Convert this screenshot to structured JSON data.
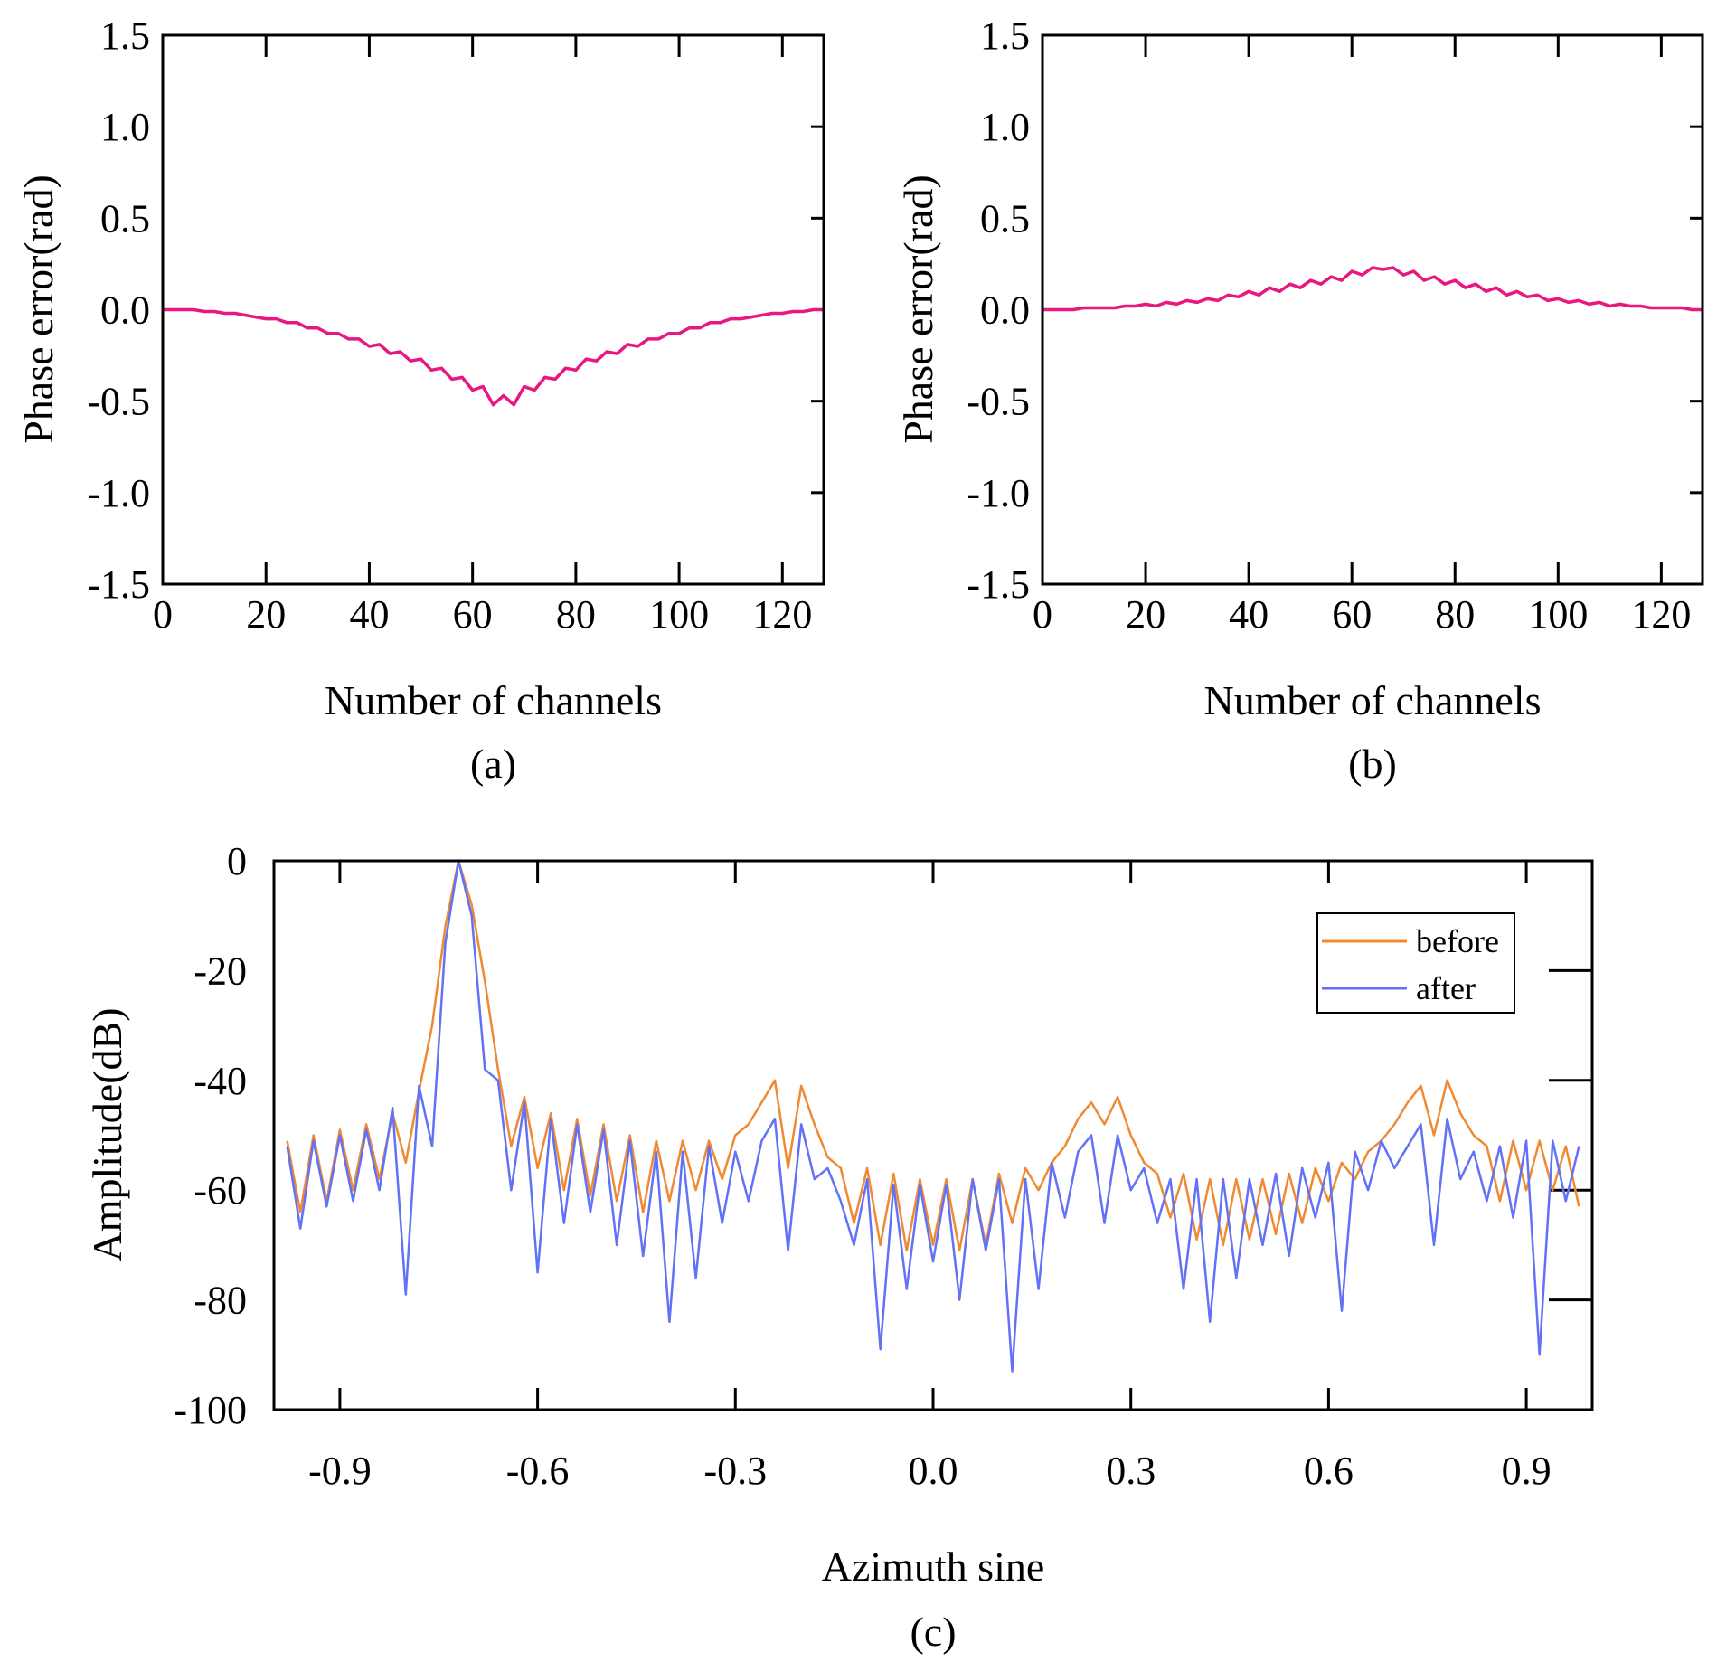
{
  "chart_data": [
    {
      "type": "line",
      "panel": "(a)",
      "xlabel": "Number of channels",
      "ylabel": "Phase error(rad)",
      "xlim": [
        0,
        128
      ],
      "ylim": [
        -1.5,
        1.5
      ],
      "xticks": [
        0,
        20,
        40,
        60,
        80,
        100,
        120
      ],
      "yticks": [
        "1.5",
        "1.0",
        "0.5",
        "0.0",
        "-0.5",
        "-1.0",
        "-1.5"
      ],
      "color": "#e8187f",
      "x": [
        0,
        2,
        4,
        6,
        8,
        10,
        12,
        14,
        16,
        18,
        20,
        22,
        24,
        26,
        28,
        30,
        32,
        34,
        36,
        38,
        40,
        42,
        44,
        46,
        48,
        50,
        52,
        54,
        56,
        58,
        60,
        62,
        64,
        66,
        68,
        70,
        72,
        74,
        76,
        78,
        80,
        82,
        84,
        86,
        88,
        90,
        92,
        94,
        96,
        98,
        100,
        102,
        104,
        106,
        108,
        110,
        112,
        114,
        116,
        118,
        120,
        122,
        124,
        126,
        128
      ],
      "y": [
        0,
        0,
        0,
        0,
        -0.01,
        -0.01,
        -0.02,
        -0.02,
        -0.03,
        -0.04,
        -0.05,
        -0.05,
        -0.07,
        -0.07,
        -0.1,
        -0.1,
        -0.13,
        -0.13,
        -0.16,
        -0.16,
        -0.2,
        -0.19,
        -0.24,
        -0.23,
        -0.28,
        -0.27,
        -0.33,
        -0.32,
        -0.38,
        -0.37,
        -0.44,
        -0.42,
        -0.52,
        -0.47,
        -0.52,
        -0.42,
        -0.44,
        -0.37,
        -0.38,
        -0.32,
        -0.33,
        -0.27,
        -0.28,
        -0.23,
        -0.24,
        -0.19,
        -0.2,
        -0.16,
        -0.16,
        -0.13,
        -0.13,
        -0.1,
        -0.1,
        -0.07,
        -0.07,
        -0.05,
        -0.05,
        -0.04,
        -0.03,
        -0.02,
        -0.02,
        -0.01,
        -0.01,
        0,
        0
      ]
    },
    {
      "type": "line",
      "panel": "(b)",
      "xlabel": "Number of channels",
      "ylabel": "Phase error(rad)",
      "xlim": [
        0,
        128
      ],
      "ylim": [
        -1.5,
        1.5
      ],
      "xticks": [
        0,
        20,
        40,
        60,
        80,
        100,
        120
      ],
      "yticks": [
        "1.5",
        "1.0",
        "0.5",
        "0.0",
        "-0.5",
        "-1.0",
        "-1.5"
      ],
      "color": "#e8187f",
      "x": [
        0,
        2,
        4,
        6,
        8,
        10,
        12,
        14,
        16,
        18,
        20,
        22,
        24,
        26,
        28,
        30,
        32,
        34,
        36,
        38,
        40,
        42,
        44,
        46,
        48,
        50,
        52,
        54,
        56,
        58,
        60,
        62,
        64,
        66,
        68,
        70,
        72,
        74,
        76,
        78,
        80,
        82,
        84,
        86,
        88,
        90,
        92,
        94,
        96,
        98,
        100,
        102,
        104,
        106,
        108,
        110,
        112,
        114,
        116,
        118,
        120,
        122,
        124,
        126,
        128
      ],
      "y": [
        0,
        0,
        0,
        0,
        0.01,
        0.01,
        0.01,
        0.01,
        0.02,
        0.02,
        0.03,
        0.02,
        0.04,
        0.03,
        0.05,
        0.04,
        0.06,
        0.05,
        0.08,
        0.07,
        0.1,
        0.08,
        0.12,
        0.1,
        0.14,
        0.12,
        0.16,
        0.14,
        0.18,
        0.16,
        0.21,
        0.19,
        0.23,
        0.22,
        0.23,
        0.19,
        0.21,
        0.16,
        0.18,
        0.14,
        0.16,
        0.12,
        0.14,
        0.1,
        0.12,
        0.08,
        0.1,
        0.07,
        0.08,
        0.05,
        0.06,
        0.04,
        0.05,
        0.03,
        0.04,
        0.02,
        0.03,
        0.02,
        0.02,
        0.01,
        0.01,
        0.01,
        0.01,
        0,
        0
      ]
    },
    {
      "type": "line",
      "panel": "(c)",
      "xlabel": "Azimuth sine",
      "ylabel": "Amplitude(dB)",
      "xlim": [
        -1,
        1
      ],
      "ylim": [
        -100,
        0
      ],
      "xticks": [
        "-0.9",
        "-0.6",
        "-0.3",
        "0.0",
        "0.3",
        "0.6",
        "0.9"
      ],
      "yticks": [
        "0",
        "-20",
        "-40",
        "-60",
        "-80",
        "-100"
      ],
      "legend": "top-right",
      "x": [
        -0.98,
        -0.96,
        -0.94,
        -0.92,
        -0.9,
        -0.88,
        -0.86,
        -0.84,
        -0.82,
        -0.8,
        -0.78,
        -0.76,
        -0.74,
        -0.72,
        -0.7,
        -0.68,
        -0.66,
        -0.64,
        -0.62,
        -0.6,
        -0.58,
        -0.56,
        -0.54,
        -0.52,
        -0.5,
        -0.48,
        -0.46,
        -0.44,
        -0.42,
        -0.4,
        -0.38,
        -0.36,
        -0.34,
        -0.32,
        -0.3,
        -0.28,
        -0.26,
        -0.24,
        -0.22,
        -0.2,
        -0.18,
        -0.16,
        -0.14,
        -0.12,
        -0.1,
        -0.08,
        -0.06,
        -0.04,
        -0.02,
        0,
        0.02,
        0.04,
        0.06,
        0.08,
        0.1,
        0.12,
        0.14,
        0.16,
        0.18,
        0.2,
        0.22,
        0.24,
        0.26,
        0.28,
        0.3,
        0.32,
        0.34,
        0.36,
        0.38,
        0.4,
        0.42,
        0.44,
        0.46,
        0.48,
        0.5,
        0.52,
        0.54,
        0.56,
        0.58,
        0.6,
        0.62,
        0.64,
        0.66,
        0.68,
        0.7,
        0.72,
        0.74,
        0.76,
        0.78,
        0.8,
        0.82,
        0.84,
        0.86,
        0.88,
        0.9,
        0.92,
        0.94,
        0.96,
        0.98
      ],
      "series": [
        {
          "name": "before",
          "color": "#f08a32",
          "values": [
            -51,
            -64,
            -50,
            -62,
            -49,
            -60,
            -48,
            -58,
            -46,
            -55,
            -42,
            -30,
            -12,
            0,
            -8,
            -22,
            -38,
            -52,
            -43,
            -56,
            -46,
            -60,
            -47,
            -61,
            -48,
            -62,
            -50,
            -64,
            -51,
            -62,
            -51,
            -60,
            -51,
            -58,
            -50,
            -48,
            -44,
            -40,
            -56,
            -41,
            -48,
            -54,
            -56,
            -66,
            -56,
            -70,
            -57,
            -71,
            -58,
            -70,
            -58,
            -71,
            -58,
            -70,
            -57,
            -66,
            -56,
            -60,
            -55,
            -52,
            -47,
            -44,
            -48,
            -43,
            -50,
            -55,
            -57,
            -65,
            -57,
            -69,
            -58,
            -70,
            -58,
            -69,
            -58,
            -68,
            -57,
            -66,
            -56,
            -62,
            -55,
            -58,
            -53,
            -51,
            -48,
            -44,
            -41,
            -50,
            -40,
            -46,
            -50,
            -52,
            -62,
            -51,
            -60,
            -51,
            -60,
            -52,
            -63
          ]
        },
        {
          "name": "after",
          "color": "#6272f6",
          "values": [
            -52,
            -67,
            -51,
            -63,
            -50,
            -62,
            -49,
            -60,
            -45,
            -79,
            -41,
            -52,
            -15,
            0,
            -10,
            -38,
            -40,
            -60,
            -44,
            -75,
            -47,
            -66,
            -48,
            -64,
            -49,
            -70,
            -51,
            -72,
            -53,
            -84,
            -53,
            -76,
            -52,
            -66,
            -53,
            -62,
            -51,
            -47,
            -71,
            -48,
            -58,
            -56,
            -62,
            -70,
            -58,
            -89,
            -59,
            -78,
            -59,
            -73,
            -59,
            -80,
            -58,
            -71,
            -58,
            -93,
            -58,
            -78,
            -55,
            -65,
            -53,
            -50,
            -66,
            -50,
            -60,
            -56,
            -66,
            -58,
            -78,
            -58,
            -84,
            -58,
            -76,
            -58,
            -70,
            -57,
            -72,
            -56,
            -65,
            -55,
            -82,
            -53,
            -60,
            -51,
            -56,
            -52,
            -48,
            -70,
            -47,
            -58,
            -53,
            -62,
            -52,
            -65,
            -51,
            -90,
            -51,
            -62,
            -52
          ]
        }
      ]
    }
  ]
}
